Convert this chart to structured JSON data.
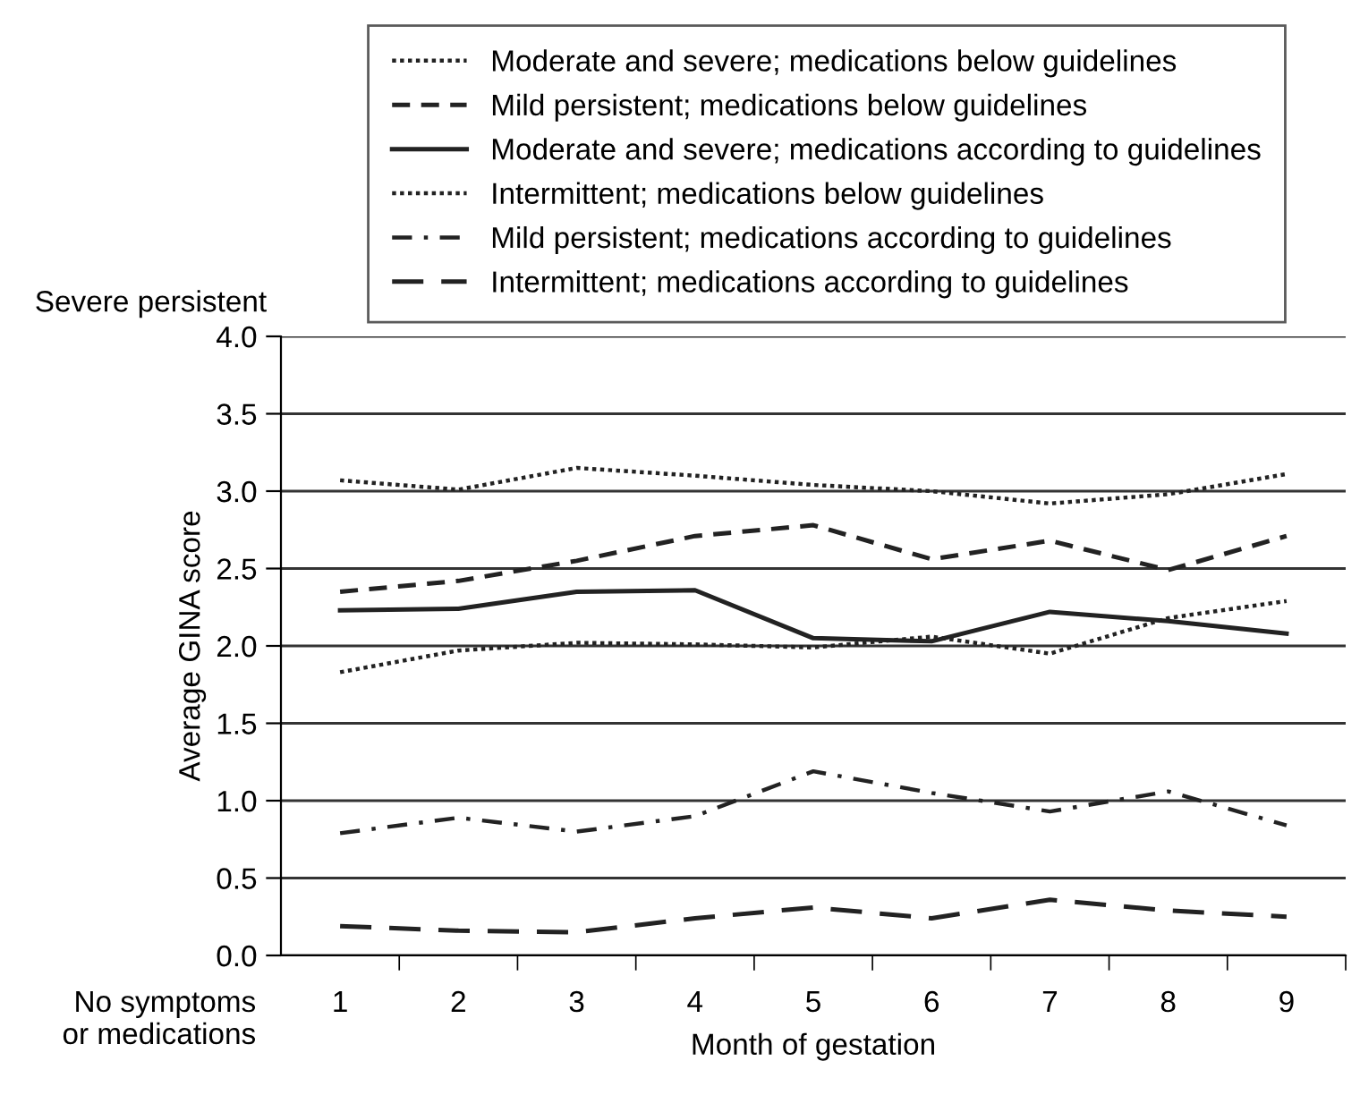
{
  "chart_data": {
    "type": "line",
    "xlabel": "Month of gestation",
    "ylabel": "Average GINA score",
    "categories": [
      "1",
      "2",
      "3",
      "4",
      "5",
      "6",
      "7",
      "8",
      "9"
    ],
    "ylim": [
      0,
      4
    ],
    "yticks": [
      {
        "value": 0,
        "label": "0.0"
      },
      {
        "value": 0.5,
        "label": "0.5"
      },
      {
        "value": 1,
        "label": "1.0"
      },
      {
        "value": 1.5,
        "label": "1.5"
      },
      {
        "value": 2,
        "label": "2.0"
      },
      {
        "value": 2.5,
        "label": "2.5"
      },
      {
        "value": 3,
        "label": "3.0"
      },
      {
        "value": 3.5,
        "label": "3.5"
      },
      {
        "value": 4,
        "label": "4.0"
      }
    ],
    "grid": "y",
    "legend": "top",
    "marker": "none",
    "annotations": [
      "Severe persistent",
      "No symptoms\nor medications"
    ],
    "series": [
      {
        "name": "Moderate and severe; medications below guidelines",
        "color": "#222222",
        "line_style": "dotted",
        "values": [
          3.07,
          3.01,
          3.15,
          3.1,
          3.04,
          3.0,
          2.92,
          2.98,
          3.11
        ]
      },
      {
        "name": "Mild persistent; medications below guidelines",
        "color": "#222222",
        "line_style": "dashed",
        "values": [
          2.35,
          2.42,
          2.55,
          2.71,
          2.78,
          2.56,
          2.68,
          2.49,
          2.71
        ]
      },
      {
        "name": "Moderate and severe; medications according to guidelines",
        "color": "#222222",
        "line_style": "solid",
        "values": [
          2.23,
          2.24,
          2.35,
          2.36,
          2.05,
          2.03,
          2.22,
          2.16,
          2.08
        ]
      },
      {
        "name": "Intermittent; medications below guidelines",
        "color": "#222222",
        "line_style": "dotted",
        "values": [
          1.83,
          1.97,
          2.02,
          2.01,
          1.99,
          2.06,
          1.95,
          2.18,
          2.29
        ]
      },
      {
        "name": "Mild persistent; medications according to guidelines",
        "color": "#222222",
        "line_style": "dashdot",
        "values": [
          0.79,
          0.89,
          0.8,
          0.9,
          1.19,
          1.05,
          0.93,
          1.06,
          0.84
        ]
      },
      {
        "name": "Intermittent; medications according to guidelines",
        "color": "#222222",
        "line_style": "longdash",
        "values": [
          0.19,
          0.16,
          0.15,
          0.24,
          0.31,
          0.24,
          0.36,
          0.29,
          0.25
        ]
      }
    ]
  }
}
